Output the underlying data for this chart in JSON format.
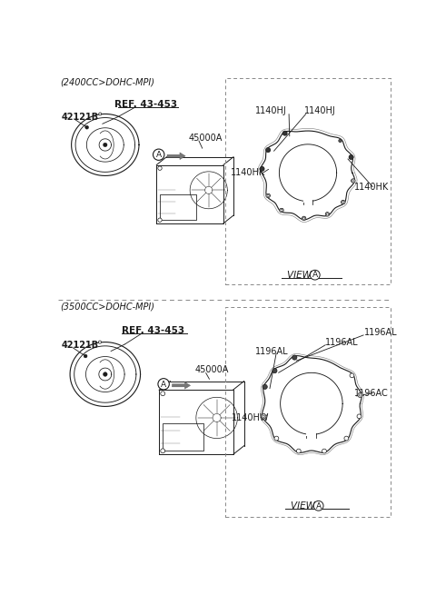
{
  "bg_color": "#ffffff",
  "line_color": "#1a1a1a",
  "gray_color": "#555555",
  "dash_color": "#888888",
  "section1_label": "(2400CC>DOHC-MPI)",
  "section2_label": "(3500CC>DOHC-MPI)",
  "label_42121B": "42121B",
  "label_ref": "REF. 43-453",
  "label_45000A": "45000A",
  "label_view": "VIEW ",
  "fs_section": 7.0,
  "fs_part": 7.0,
  "fs_view": 7.5,
  "top": {
    "callouts_top": [
      "1140HJ",
      "1140HJ"
    ],
    "callouts_mid": [
      "1140HK",
      "1140HK"
    ]
  },
  "bottom": {
    "callouts_top": [
      "1196AL",
      "1196AL"
    ],
    "callouts_mid": [
      "1196AL"
    ],
    "callouts_right": [
      "1196AC"
    ],
    "callouts_left": [
      "1140HW"
    ]
  }
}
